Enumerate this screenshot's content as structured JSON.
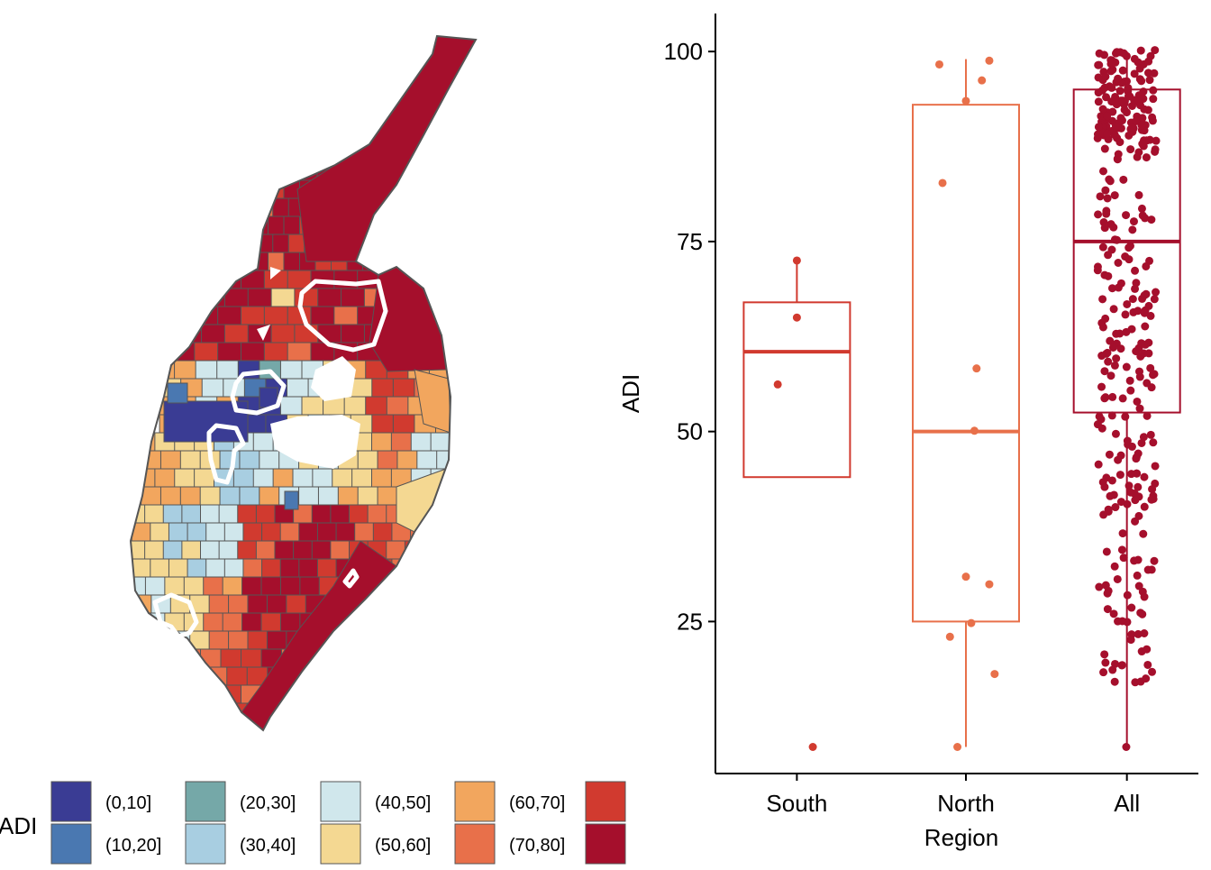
{
  "chart_data": [
    {
      "type": "map",
      "legend": {
        "title": "ADI",
        "entries": [
          {
            "label": "(0,10]",
            "color": "#3A3C94"
          },
          {
            "label": "(10,20]",
            "color": "#4A78B1"
          },
          {
            "label": "(20,30]",
            "color": "#75A8A8"
          },
          {
            "label": "(30,40]",
            "color": "#A8CEE1"
          },
          {
            "label": "(40,50]",
            "color": "#D0E7EC"
          },
          {
            "label": "(50,60]",
            "color": "#F4D892"
          },
          {
            "label": "(60,70]",
            "color": "#F2A65E"
          },
          {
            "label": "(70,80]",
            "color": "#E8704A"
          },
          {
            "label": "",
            "color": "#D13A2F"
          },
          {
            "label": "",
            "color": "#A50F2C"
          }
        ]
      },
      "region_color_order": [
        9,
        9,
        9,
        9,
        9,
        9,
        9,
        8,
        9,
        9,
        8,
        9,
        9,
        6,
        6,
        5,
        4,
        4,
        3,
        0,
        0,
        1,
        4,
        4,
        3,
        6,
        6,
        5,
        5,
        7,
        7,
        6,
        4,
        4,
        3,
        3,
        1,
        4,
        5,
        6,
        6,
        5,
        5,
        7,
        8,
        9,
        9,
        9,
        8,
        7,
        7,
        6,
        5,
        3,
        3,
        4,
        4,
        2,
        6,
        8,
        9,
        9,
        8,
        8,
        7,
        6,
        7,
        5,
        5,
        5,
        6,
        7,
        8,
        9,
        7,
        6,
        5,
        4,
        4,
        3,
        3,
        3,
        4,
        6,
        7
      ]
    },
    {
      "type": "boxplot",
      "xlabel": "Region",
      "ylabel": "ADI",
      "categories": [
        "South",
        "North",
        "All"
      ],
      "ylim": [
        5,
        105
      ],
      "yticks": [
        25,
        50,
        75,
        100
      ],
      "colors": [
        "#D13A2F",
        "#E8704A",
        "#A50F2C"
      ],
      "boxes": [
        {
          "category": "South",
          "q1": 44,
          "median": 60.5,
          "q3": 67,
          "whisker_low": 44,
          "whisker_high": 72.5
        },
        {
          "category": "North",
          "q1": 25,
          "median": 50,
          "q3": 93,
          "whisker_low": 8.5,
          "whisker_high": 99
        },
        {
          "category": "All",
          "q1": 52.5,
          "median": 75,
          "q3": 95,
          "whisker_low": 8.5,
          "whisker_high": 100
        }
      ],
      "points": {
        "South": [
          [
            0.0,
            72.5
          ],
          [
            0.0,
            65
          ],
          [
            -0.18,
            56.2
          ],
          [
            0.15,
            8.5
          ]
        ],
        "North": [
          [
            -0.25,
            98.3
          ],
          [
            0.0,
            93.5
          ],
          [
            0.15,
            96.2
          ],
          [
            0.22,
            98.8
          ],
          [
            -0.22,
            82.7
          ],
          [
            0.1,
            58.3
          ],
          [
            0.08,
            50.1
          ],
          [
            0.0,
            30.9
          ],
          [
            0.22,
            29.9
          ],
          [
            -0.15,
            23.0
          ],
          [
            0.05,
            24.8
          ],
          [
            0.27,
            18.1
          ],
          [
            -0.08,
            8.5
          ]
        ]
      }
    }
  ]
}
